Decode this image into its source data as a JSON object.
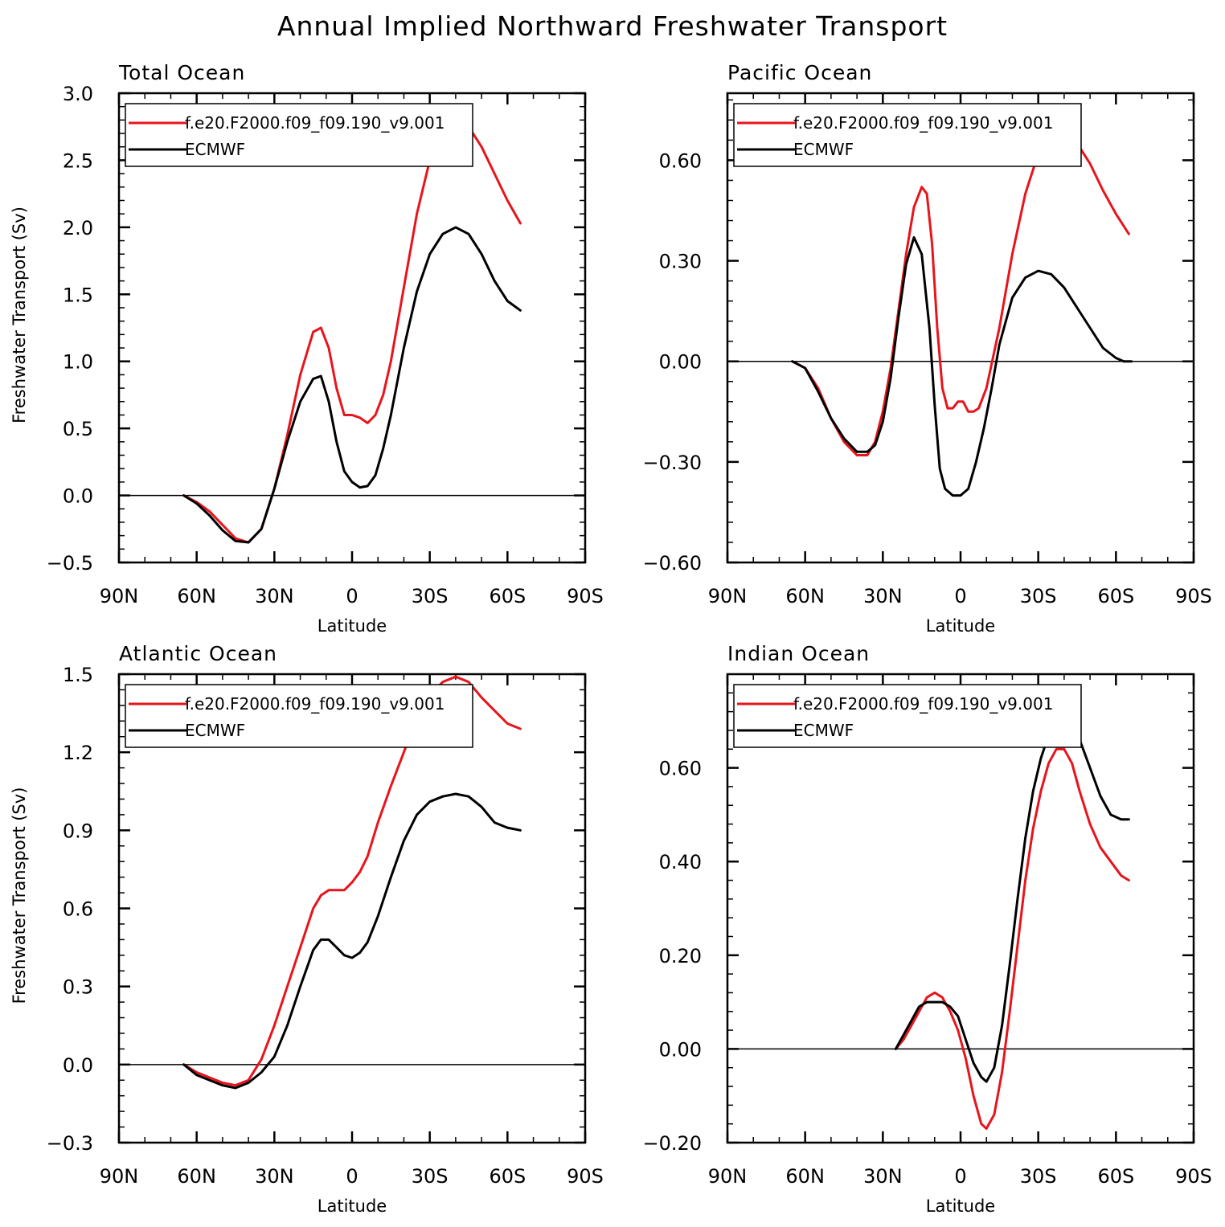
{
  "figure": {
    "title": "Annual Implied Northward Freshwater Transport"
  },
  "chart_data": [
    {
      "type": "line",
      "title": "Total Ocean",
      "xlabel": "Latitude",
      "ylabel": "Freshwater Transport (Sv)",
      "xlim": [
        90,
        -90
      ],
      "x_ticks": [
        90,
        60,
        30,
        0,
        -30,
        -60,
        -90
      ],
      "x_tick_labels": [
        "90N",
        "60N",
        "30N",
        "0",
        "30S",
        "60S",
        "90S"
      ],
      "ylim": [
        -0.5,
        3.0
      ],
      "y_ticks": [
        -0.5,
        0.0,
        0.5,
        1.0,
        1.5,
        2.0,
        2.5,
        3.0
      ],
      "y_tick_labels": [
        "−0.5",
        "0.0",
        "0.5",
        "1.0",
        "1.5",
        "2.0",
        "2.5",
        "3.0"
      ],
      "zero_line": true,
      "legend_position": "top-left",
      "series": [
        {
          "name": "f.e20.F2000.f09_f09.190_v9.001",
          "color": "#e8141b",
          "x": [
            65,
            60,
            55,
            50,
            45,
            40,
            35,
            30,
            25,
            20,
            15,
            12,
            9,
            6,
            3,
            0,
            -3,
            -6,
            -9,
            -12,
            -15,
            -20,
            -25,
            -30,
            -35,
            -40,
            -45,
            -50,
            -55,
            -60,
            -65
          ],
          "y": [
            0.0,
            -0.05,
            -0.12,
            -0.22,
            -0.32,
            -0.35,
            -0.25,
            0.05,
            0.45,
            0.9,
            1.22,
            1.25,
            1.1,
            0.8,
            0.6,
            0.6,
            0.58,
            0.54,
            0.6,
            0.75,
            1.0,
            1.55,
            2.1,
            2.5,
            2.72,
            2.8,
            2.75,
            2.6,
            2.4,
            2.2,
            2.03
          ]
        },
        {
          "name": "ECMWF",
          "color": "#000000",
          "x": [
            65,
            60,
            55,
            50,
            45,
            40,
            35,
            30,
            25,
            20,
            15,
            12,
            9,
            6,
            3,
            0,
            -3,
            -6,
            -9,
            -12,
            -15,
            -20,
            -25,
            -30,
            -35,
            -40,
            -45,
            -50,
            -55,
            -60,
            -65
          ],
          "y": [
            0.0,
            -0.06,
            -0.15,
            -0.26,
            -0.34,
            -0.35,
            -0.25,
            0.05,
            0.4,
            0.7,
            0.87,
            0.89,
            0.7,
            0.4,
            0.18,
            0.1,
            0.06,
            0.07,
            0.15,
            0.35,
            0.6,
            1.1,
            1.52,
            1.8,
            1.95,
            2.0,
            1.95,
            1.8,
            1.6,
            1.45,
            1.38
          ]
        }
      ]
    },
    {
      "type": "line",
      "title": "Pacific Ocean",
      "xlabel": "Latitude",
      "ylabel": "",
      "xlim": [
        90,
        -90
      ],
      "x_ticks": [
        90,
        60,
        30,
        0,
        -30,
        -60,
        -90
      ],
      "x_tick_labels": [
        "90N",
        "60N",
        "30N",
        "0",
        "30S",
        "60S",
        "90S"
      ],
      "ylim": [
        -0.6,
        0.8
      ],
      "y_ticks": [
        -0.6,
        -0.3,
        0.0,
        0.3,
        0.6
      ],
      "y_tick_labels": [
        "−0.60",
        "−0.30",
        "0.00",
        "0.30",
        "0.60"
      ],
      "zero_line": true,
      "legend_position": "top-left",
      "series": [
        {
          "name": "f.e20.F2000.f09_f09.190_v9.001",
          "color": "#e8141b",
          "x": [
            65,
            60,
            55,
            50,
            45,
            40,
            36,
            33,
            30,
            27,
            24,
            21,
            18,
            15,
            13,
            11,
            9,
            7,
            5,
            3,
            1,
            -1,
            -3,
            -5,
            -7,
            -10,
            -15,
            -20,
            -25,
            -30,
            -35,
            -40,
            -45,
            -50,
            -55,
            -60,
            -65
          ],
          "y": [
            0.0,
            -0.02,
            -0.08,
            -0.17,
            -0.24,
            -0.28,
            -0.28,
            -0.24,
            -0.15,
            -0.02,
            0.15,
            0.32,
            0.46,
            0.52,
            0.5,
            0.35,
            0.1,
            -0.08,
            -0.14,
            -0.14,
            -0.12,
            -0.12,
            -0.15,
            -0.15,
            -0.14,
            -0.08,
            0.1,
            0.32,
            0.5,
            0.62,
            0.67,
            0.68,
            0.65,
            0.59,
            0.51,
            0.44,
            0.38
          ]
        },
        {
          "name": "ECMWF",
          "color": "#000000",
          "x": [
            65,
            60,
            55,
            50,
            45,
            40,
            36,
            33,
            30,
            27,
            24,
            21,
            18,
            15,
            12,
            10,
            8,
            6,
            3,
            0,
            -3,
            -6,
            -9,
            -12,
            -15,
            -20,
            -25,
            -30,
            -35,
            -40,
            -45,
            -50,
            -55,
            -60,
            -63,
            -66
          ],
          "y": [
            0.0,
            -0.02,
            -0.09,
            -0.17,
            -0.23,
            -0.27,
            -0.27,
            -0.25,
            -0.18,
            -0.05,
            0.13,
            0.29,
            0.37,
            0.32,
            0.1,
            -0.13,
            -0.32,
            -0.38,
            -0.4,
            -0.4,
            -0.38,
            -0.3,
            -0.2,
            -0.08,
            0.05,
            0.19,
            0.25,
            0.27,
            0.26,
            0.22,
            0.16,
            0.1,
            0.04,
            0.01,
            0.0,
            0.0
          ]
        }
      ]
    },
    {
      "type": "line",
      "title": "Atlantic Ocean",
      "xlabel": "Latitude",
      "ylabel": "Freshwater Transport (Sv)",
      "xlim": [
        90,
        -90
      ],
      "x_ticks": [
        90,
        60,
        30,
        0,
        -30,
        -60,
        -90
      ],
      "x_tick_labels": [
        "90N",
        "60N",
        "30N",
        "0",
        "30S",
        "60S",
        "90S"
      ],
      "ylim": [
        -0.3,
        1.5
      ],
      "y_ticks": [
        -0.3,
        0.0,
        0.3,
        0.6,
        0.9,
        1.2,
        1.5
      ],
      "y_tick_labels": [
        "−0.3",
        "0.0",
        "0.3",
        "0.6",
        "0.9",
        "1.2",
        "1.5"
      ],
      "zero_line": true,
      "legend_position": "top-left",
      "series": [
        {
          "name": "f.e20.F2000.f09_f09.190_v9.001",
          "color": "#e8141b",
          "x": [
            65,
            60,
            55,
            50,
            45,
            40,
            35,
            30,
            25,
            20,
            15,
            12,
            9,
            6,
            3,
            0,
            -3,
            -6,
            -10,
            -15,
            -20,
            -25,
            -30,
            -35,
            -40,
            -45,
            -50,
            -55,
            -60,
            -65
          ],
          "y": [
            0.0,
            -0.03,
            -0.05,
            -0.07,
            -0.08,
            -0.06,
            0.02,
            0.15,
            0.3,
            0.45,
            0.6,
            0.65,
            0.67,
            0.67,
            0.67,
            0.7,
            0.74,
            0.8,
            0.93,
            1.07,
            1.2,
            1.33,
            1.42,
            1.47,
            1.49,
            1.47,
            1.41,
            1.36,
            1.31,
            1.29
          ]
        },
        {
          "name": "ECMWF",
          "color": "#000000",
          "x": [
            65,
            60,
            55,
            50,
            45,
            40,
            35,
            30,
            25,
            20,
            15,
            12,
            9,
            6,
            3,
            0,
            -3,
            -6,
            -10,
            -15,
            -20,
            -25,
            -30,
            -35,
            -40,
            -45,
            -50,
            -55,
            -60,
            -65
          ],
          "y": [
            0.0,
            -0.04,
            -0.06,
            -0.08,
            -0.09,
            -0.07,
            -0.03,
            0.03,
            0.15,
            0.3,
            0.44,
            0.48,
            0.48,
            0.45,
            0.42,
            0.41,
            0.43,
            0.47,
            0.57,
            0.72,
            0.86,
            0.96,
            1.01,
            1.03,
            1.04,
            1.03,
            0.99,
            0.93,
            0.91,
            0.9
          ]
        }
      ]
    },
    {
      "type": "line",
      "title": "Indian Ocean",
      "xlabel": "Latitude",
      "ylabel": "",
      "xlim": [
        90,
        -90
      ],
      "x_ticks": [
        90,
        60,
        30,
        0,
        -30,
        -60,
        -90
      ],
      "x_tick_labels": [
        "90N",
        "60N",
        "30N",
        "0",
        "30S",
        "60S",
        "90S"
      ],
      "ylim": [
        -0.2,
        0.8
      ],
      "y_ticks": [
        -0.2,
        0.0,
        0.2,
        0.4,
        0.6
      ],
      "y_tick_labels": [
        "−0.20",
        "0.00",
        "0.20",
        "0.40",
        "0.60"
      ],
      "zero_line": true,
      "legend_position": "top-left",
      "series": [
        {
          "name": "f.e20.F2000.f09_f09.190_v9.001",
          "color": "#e8141b",
          "x": [
            25,
            22,
            19,
            16,
            13,
            10,
            7,
            4,
            1,
            -2,
            -5,
            -8,
            -10,
            -13,
            -16,
            -19,
            -22,
            -25,
            -28,
            -31,
            -34,
            -37,
            -40,
            -43,
            -46,
            -50,
            -54,
            -58,
            -62,
            -65
          ],
          "y": [
            0.0,
            0.02,
            0.05,
            0.08,
            0.11,
            0.12,
            0.11,
            0.08,
            0.04,
            -0.02,
            -0.1,
            -0.16,
            -0.17,
            -0.14,
            -0.05,
            0.08,
            0.22,
            0.36,
            0.47,
            0.55,
            0.61,
            0.64,
            0.64,
            0.61,
            0.55,
            0.48,
            0.43,
            0.4,
            0.37,
            0.36
          ]
        },
        {
          "name": "ECMWF",
          "color": "#000000",
          "x": [
            25,
            22,
            19,
            16,
            13,
            10,
            7,
            4,
            1,
            -2,
            -5,
            -8,
            -10,
            -13,
            -16,
            -19,
            -22,
            -25,
            -28,
            -31,
            -34,
            -37,
            -40,
            -43,
            -46,
            -50,
            -54,
            -58,
            -62,
            -65
          ],
          "y": [
            0.0,
            0.03,
            0.06,
            0.09,
            0.1,
            0.1,
            0.1,
            0.09,
            0.07,
            0.02,
            -0.03,
            -0.06,
            -0.07,
            -0.04,
            0.05,
            0.18,
            0.32,
            0.45,
            0.55,
            0.62,
            0.67,
            0.7,
            0.71,
            0.7,
            0.66,
            0.6,
            0.54,
            0.5,
            0.49,
            0.49
          ]
        }
      ]
    }
  ]
}
